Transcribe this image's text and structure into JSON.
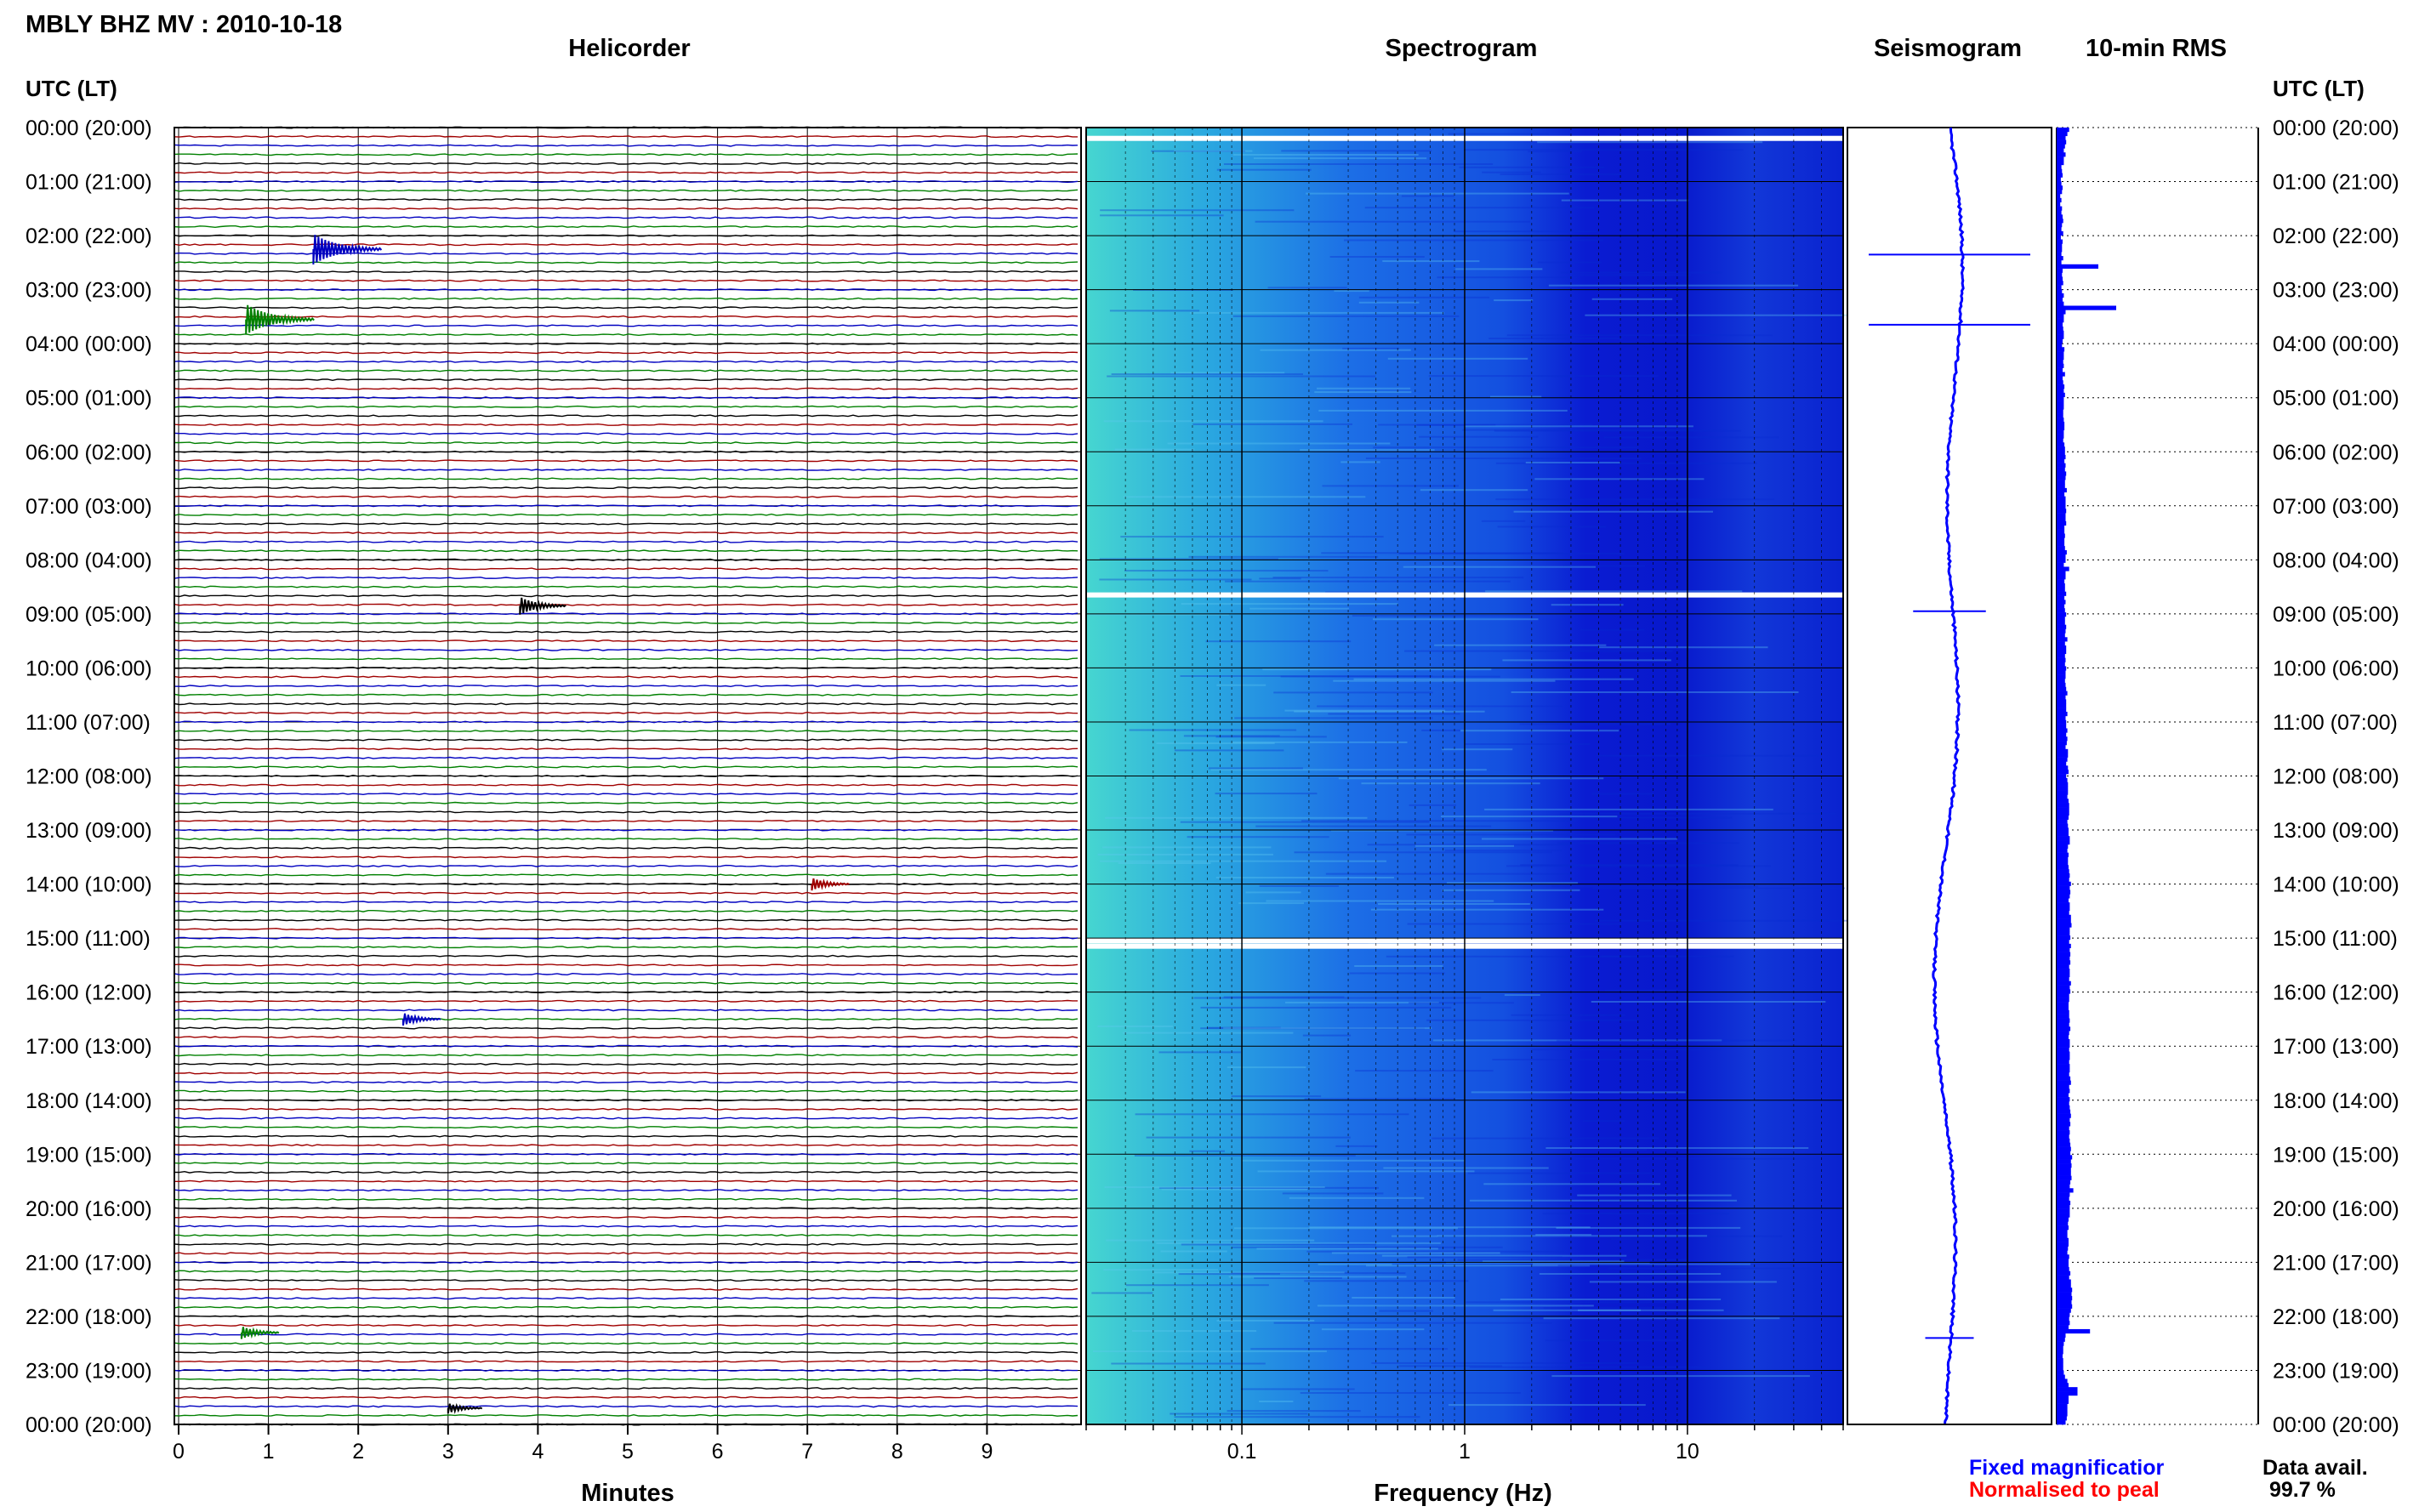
{
  "header": {
    "title": "MBLY BHZ MV : 2010-10-18"
  },
  "panels": {
    "helicorder": "Helicorder",
    "spectrogram": "Spectrogram",
    "seismogram": "Seismogram",
    "rms": "10-min RMS"
  },
  "axis": {
    "time_header": "UTC (LT)",
    "minutes_label": "Minutes",
    "frequency_label": "Frequency (Hz)",
    "minute_ticks": [
      "0",
      "1",
      "2",
      "3",
      "4",
      "5",
      "6",
      "7",
      "8",
      "9"
    ],
    "frequency_ticks": [
      "0.1",
      "1",
      "10"
    ]
  },
  "legend": {
    "fixed": "Fixed magnificatior",
    "normalised": "Normalised to peal",
    "data_avail_label": "Data avail.",
    "data_avail_value": "99.7 %",
    "fixed_color": "#0000ff",
    "normalised_color": "#ff0000"
  },
  "colors": {
    "trace_cycle": [
      "#000000",
      "#a00000",
      "#0000c0",
      "#008000"
    ],
    "spectrogram_low": "#40d8d8",
    "spectrogram_high": "#0000d8",
    "seismogram": "#0000ff",
    "rms_bar": "#0000ff"
  },
  "chart_data": [
    {
      "type": "line",
      "title": "Helicorder",
      "xlabel": "Minutes",
      "xlim": [
        0,
        10
      ],
      "rows_per_hour": 6,
      "hour_labels": [
        "00:00 (20:00)",
        "01:00 (21:00)",
        "02:00 (22:00)",
        "03:00 (23:00)",
        "04:00 (00:00)",
        "05:00 (01:00)",
        "06:00 (02:00)",
        "07:00 (03:00)",
        "08:00 (04:00)",
        "09:00 (05:00)",
        "10:00 (06:00)",
        "11:00 (07:00)",
        "12:00 (08:00)",
        "13:00 (09:00)",
        "14:00 (10:00)",
        "15:00 (11:00)",
        "16:00 (12:00)",
        "17:00 (13:00)",
        "18:00 (14:00)",
        "19:00 (15:00)",
        "20:00 (16:00)",
        "21:00 (17:00)",
        "22:00 (18:00)",
        "23:00 (19:00)",
        "00:00 (20:00)"
      ],
      "events": [
        {
          "hour": 2.25,
          "minute": 1.5,
          "amplitude": 1.0
        },
        {
          "hour": 3.55,
          "minute": 0.75,
          "amplitude": 1.0
        },
        {
          "hour": 8.85,
          "minute": 3.8,
          "amplitude": 0.5
        },
        {
          "hour": 14.0,
          "minute": 7.05,
          "amplitude": 0.3
        },
        {
          "hour": 16.5,
          "minute": 2.5,
          "amplitude": 0.3
        },
        {
          "hour": 22.3,
          "minute": 0.7,
          "amplitude": 0.3
        },
        {
          "hour": 23.7,
          "minute": 3.0,
          "amplitude": 0.2
        }
      ]
    },
    {
      "type": "heatmap",
      "title": "Spectrogram",
      "xlabel": "Frequency (Hz)",
      "xscale": "log",
      "xlim": [
        0.02,
        50
      ],
      "ylim_hours": [
        0,
        24
      ],
      "data_gaps_hours": [
        0.2,
        8.65,
        15.05,
        15.15
      ]
    },
    {
      "type": "line",
      "title": "Seismogram",
      "spikes": [
        {
          "hour": 2.35,
          "amplitude": 1.0
        },
        {
          "hour": 3.65,
          "amplitude": 1.0
        },
        {
          "hour": 8.95,
          "amplitude": 0.45
        },
        {
          "hour": 22.4,
          "amplitude": 0.3
        }
      ]
    },
    {
      "type": "bar",
      "title": "10-min RMS",
      "values": [
        0.21,
        0.18,
        0.15,
        0.16,
        0.14,
        0.12,
        0.15,
        0.12,
        0.12,
        0.08,
        0.09,
        0.1,
        0.07,
        0.08,
        0.1,
        0.09,
        0.06,
        0.08,
        0.06,
        0.09,
        0.08,
        0.1,
        0.11,
        0.09,
        0.08,
        0.11,
        0.07,
        0.1,
        0.09,
        0.09,
        0.08,
        0.11,
        0.08,
        0.7,
        0.1,
        0.09,
        0.1,
        0.11,
        0.08,
        0.09,
        0.12,
        0.1,
        0.12,
        1.0,
        0.15,
        0.12,
        0.12,
        0.1,
        0.11,
        0.12,
        0.12,
        0.1,
        0.09,
        0.13,
        0.12,
        0.12,
        0.11,
        0.12,
        0.1,
        0.14,
        0.1,
        0.11,
        0.13,
        0.12,
        0.14,
        0.12,
        0.12,
        0.12,
        0.11,
        0.11,
        0.12,
        0.13,
        0.13,
        0.12,
        0.12,
        0.11,
        0.13,
        0.14,
        0.14,
        0.15,
        0.13,
        0.15,
        0.14,
        0.16,
        0.15,
        0.14,
        0.14,
        0.17,
        0.13,
        0.15,
        0.15,
        0.15,
        0.16,
        0.15,
        0.15,
        0.16,
        0.13,
        0.13,
        0.14,
        0.13,
        0.13,
        0.14,
        0.17,
        0.15,
        0.15,
        0.12,
        0.21,
        0.15,
        0.15,
        0.13,
        0.14,
        0.14,
        0.16,
        0.13,
        0.15,
        0.13,
        0.14,
        0.16,
        0.14,
        0.14,
        0.16,
        0.15,
        0.14,
        0.18,
        0.14,
        0.16,
        0.16,
        0.14,
        0.15,
        0.14,
        0.16,
        0.15,
        0.15,
        0.14,
        0.15,
        0.16,
        0.18,
        0.15,
        0.16,
        0.16,
        0.16,
        0.18,
        0.15,
        0.16,
        0.16,
        0.18,
        0.16,
        0.18,
        0.17,
        0.15,
        0.19,
        0.19,
        0.18,
        0.16,
        0.19,
        0.2,
        0.16,
        0.18,
        0.19,
        0.19,
        0.19,
        0.18,
        0.2,
        0.21,
        0.21,
        0.21,
        0.2,
        0.18,
        0.19,
        0.2,
        0.2,
        0.22,
        0.22,
        0.19,
        0.18,
        0.2,
        0.19,
        0.19,
        0.2,
        0.21,
        0.22,
        0.21,
        0.24,
        0.22,
        0.23,
        0.22,
        0.2,
        0.22,
        0.22,
        0.21,
        0.24,
        0.24,
        0.25,
        0.22,
        0.22,
        0.23,
        0.21,
        0.24,
        0.22,
        0.23,
        0.22,
        0.23,
        0.21,
        0.22,
        0.22,
        0.21,
        0.24,
        0.22,
        0.23,
        0.21,
        0.21,
        0.2,
        0.2,
        0.21,
        0.21,
        0.22,
        0.21,
        0.23,
        0.21,
        0.2,
        0.22,
        0.22,
        0.21,
        0.22,
        0.22,
        0.21,
        0.22,
        0.22,
        0.21,
        0.23,
        0.24,
        0.21,
        0.22,
        0.2,
        0.22,
        0.21,
        0.22,
        0.23,
        0.24,
        0.22,
        0.23,
        0.21,
        0.22,
        0.21,
        0.22,
        0.23,
        0.24,
        0.23,
        0.26,
        0.24,
        0.25,
        0.24,
        0.24,
        0.25,
        0.23,
        0.22,
        0.28,
        0.22,
        0.21,
        0.23,
        0.22,
        0.22,
        0.22,
        0.2,
        0.19,
        0.2,
        0.18,
        0.18,
        0.2,
        0.2,
        0.19,
        0.18,
        0.21,
        0.2,
        0.2,
        0.21,
        0.23,
        0.21,
        0.24,
        0.24,
        0.26,
        0.25,
        0.26,
        0.25,
        0.26,
        0.24,
        0.22,
        0.21,
        0.22,
        0.2,
        0.56,
        0.15,
        0.14,
        0.12,
        0.11,
        0.11,
        0.1,
        0.11,
        0.11,
        0.11,
        0.12,
        0.14,
        0.18,
        0.2,
        0.35,
        0.35,
        0.2,
        0.2,
        0.18,
        0.18,
        0.18,
        0.17,
        0.15
      ]
    }
  ]
}
